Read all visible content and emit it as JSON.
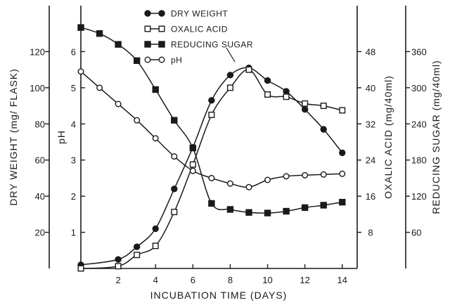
{
  "chart_data": {
    "type": "line",
    "title": "",
    "xlabel": "INCUBATION TIME (DAYS)",
    "xlim": [
      0,
      14.8
    ],
    "xticks": [
      "2",
      "4",
      "6",
      "8",
      "10",
      "12",
      "14"
    ],
    "axes": {
      "dry_weight": {
        "label": "DRY WEIGHT (mg/ FLASK)",
        "range": [
          0,
          140
        ],
        "ticks": [
          "20",
          "40",
          "60",
          "80",
          "100",
          "120"
        ]
      },
      "ph": {
        "label": "pH",
        "range": [
          0,
          7
        ],
        "ticks": [
          "1",
          "2",
          "3",
          "4",
          "5",
          "6"
        ]
      },
      "oxalic_acid": {
        "label": "OXALIC ACID (mg/40ml)",
        "range": [
          0,
          56
        ],
        "ticks": [
          "8",
          "16",
          "24",
          "32",
          "40",
          "48"
        ]
      },
      "reducing_sugar": {
        "label": "REDUCING SUGAR (mg/40ml)",
        "range": [
          0,
          420
        ],
        "ticks": [
          "60",
          "120",
          "180",
          "240",
          "300",
          "360"
        ]
      }
    },
    "legend_position": "top-center",
    "series": [
      {
        "name": "DRY WEIGHT",
        "axis": "dry_weight",
        "marker": "filled-circle",
        "x": [
          0,
          2,
          3,
          4,
          5,
          6,
          7,
          8,
          9,
          10,
          11,
          12,
          13,
          14
        ],
        "y": [
          2,
          5,
          12,
          22,
          44,
          67,
          93,
          107,
          111,
          104,
          98,
          88,
          77,
          64
        ]
      },
      {
        "name": "OXALIC ACID",
        "axis": "oxalic_acid",
        "marker": "open-square",
        "x": [
          0,
          2,
          3,
          4,
          5,
          6,
          7,
          8,
          9,
          10,
          11,
          12,
          13,
          14
        ],
        "y": [
          0,
          0.5,
          3,
          5,
          12.5,
          23,
          34,
          40,
          44,
          38.5,
          38,
          36.5,
          36,
          35
        ]
      },
      {
        "name": "REDUCING SUGAR",
        "axis": "reducing_sugar",
        "marker": "filled-square",
        "x": [
          0,
          1,
          2,
          3,
          4,
          5,
          6,
          7,
          8,
          9,
          10,
          11,
          12,
          13,
          14
        ],
        "y": [
          400,
          390,
          372,
          345,
          297,
          246,
          200,
          108,
          98,
          93,
          92,
          95,
          101,
          105,
          110
        ]
      },
      {
        "name": "pH",
        "axis": "ph",
        "marker": "open-circle",
        "x": [
          0,
          1,
          2,
          3,
          4,
          5,
          6,
          7,
          8,
          9,
          10,
          11,
          12,
          13,
          14
        ],
        "y": [
          5.45,
          5.0,
          4.55,
          4.1,
          3.6,
          3.1,
          2.7,
          2.5,
          2.35,
          2.25,
          2.45,
          2.55,
          2.58,
          2.6,
          2.62
        ]
      }
    ]
  }
}
